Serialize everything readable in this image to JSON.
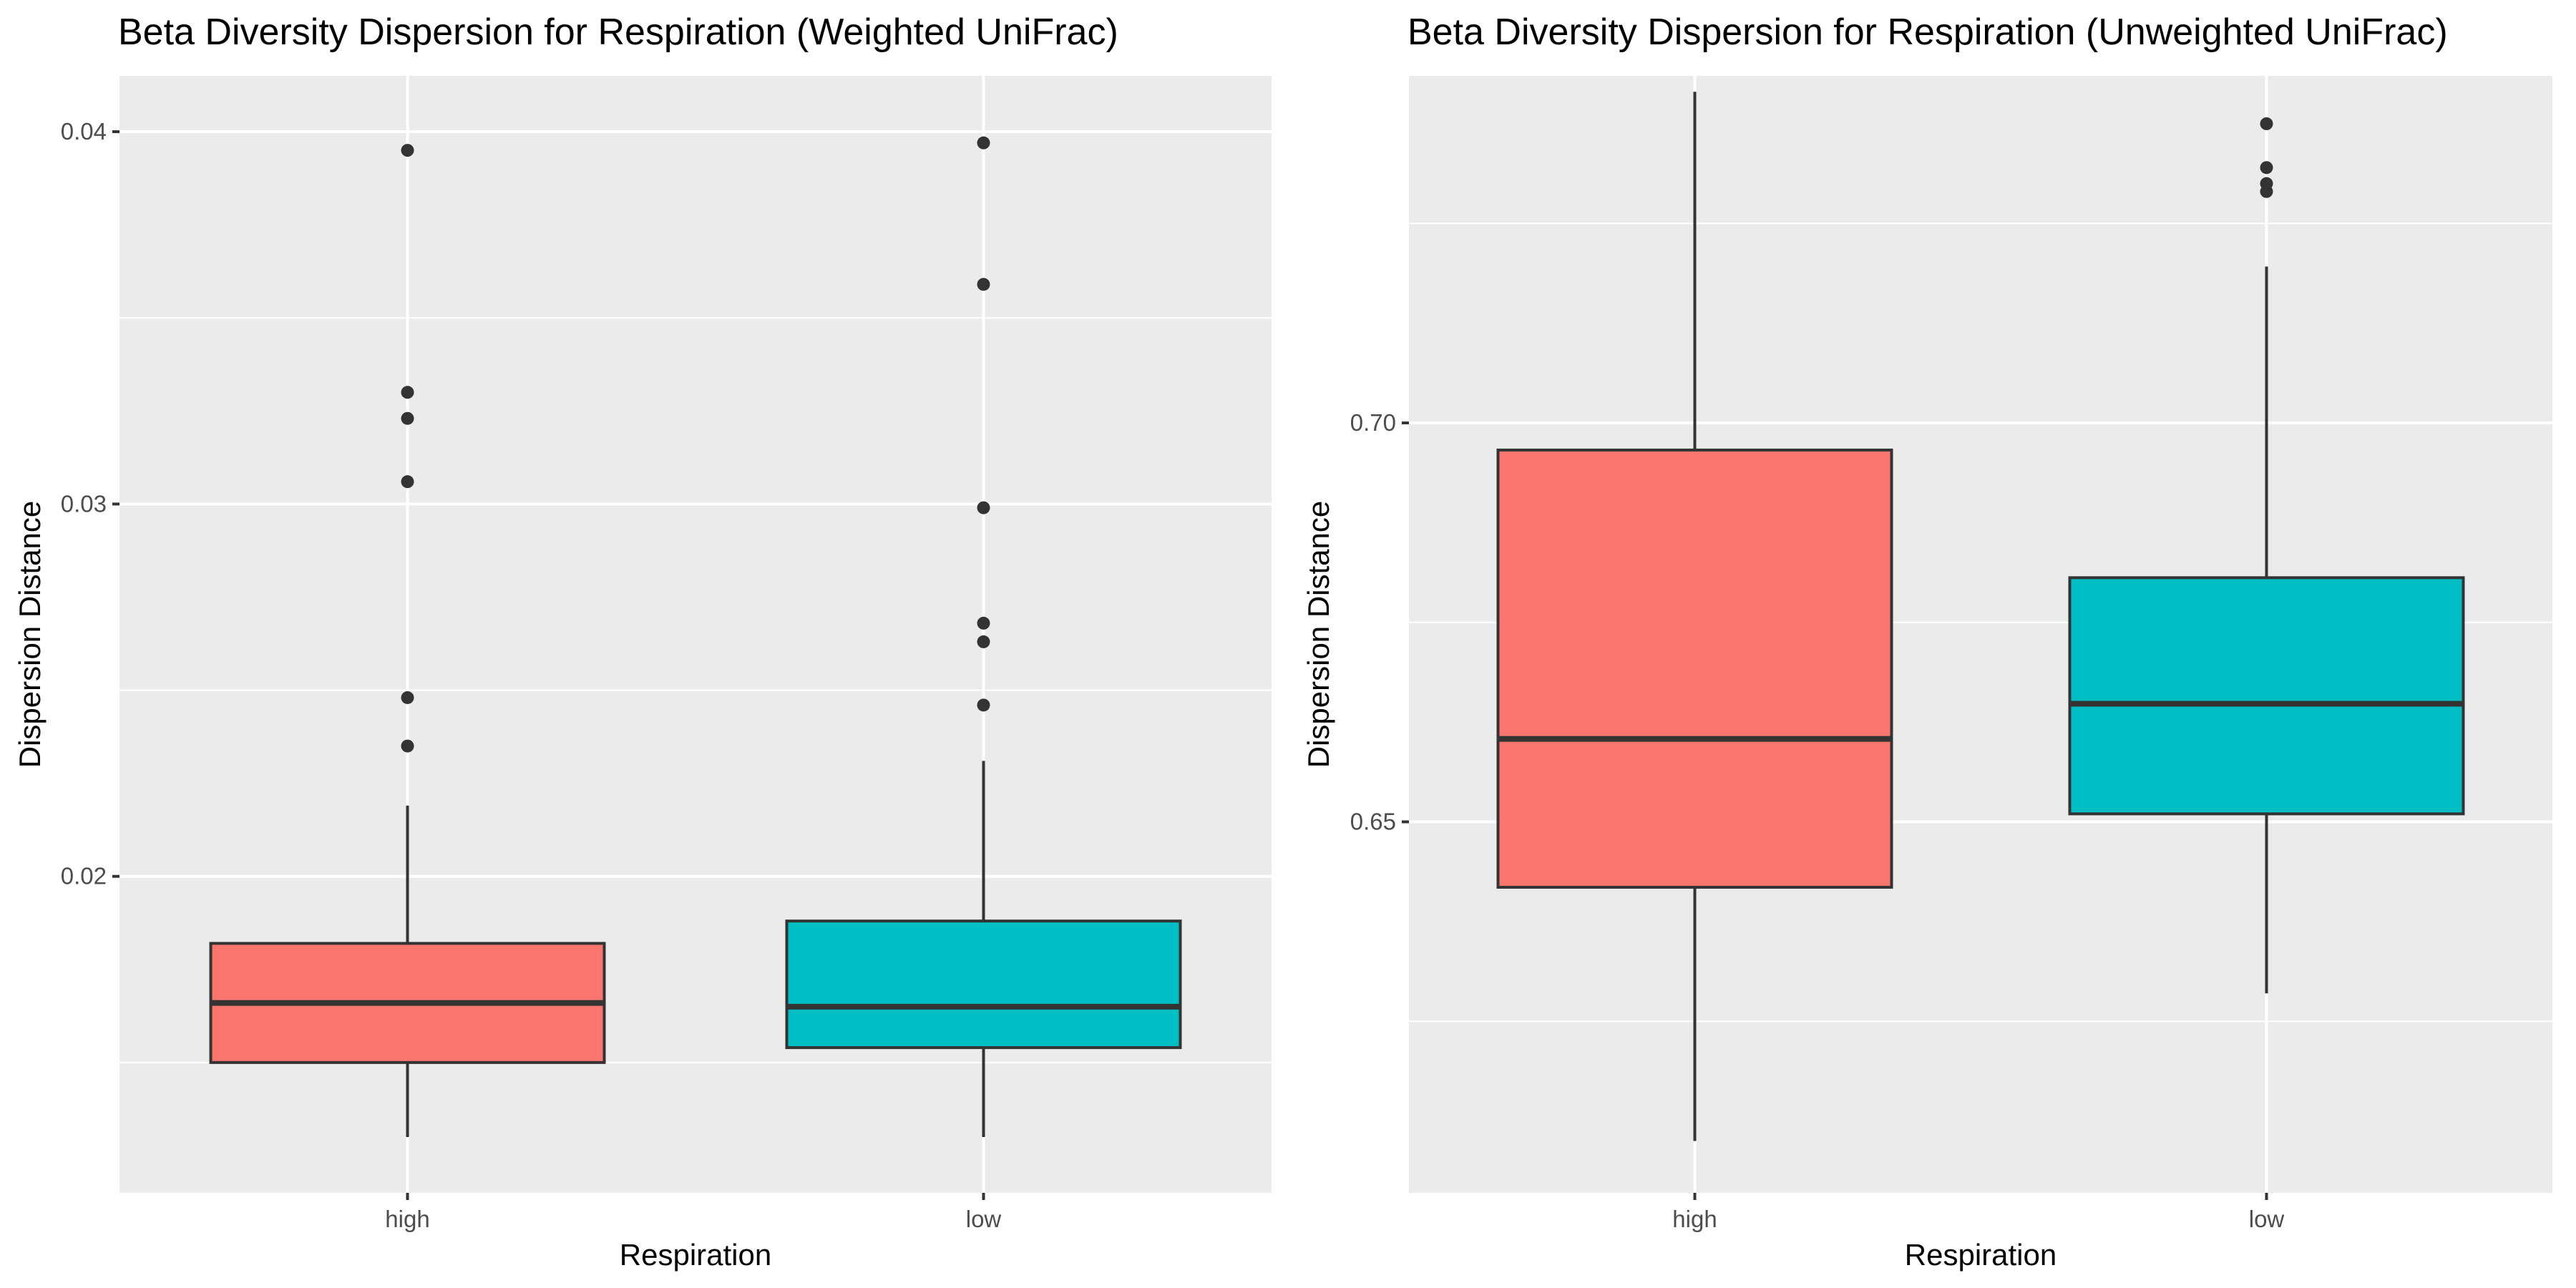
{
  "chart_data": [
    {
      "type": "box",
      "title": "Beta Diversity Dispersion for Respiration (Weighted UniFrac)",
      "xlabel": "Respiration",
      "ylabel": "Dispersion Distance",
      "ylim": [
        0.0115,
        0.0415
      ],
      "yticks": [
        0.02,
        0.03,
        0.04
      ],
      "ytick_labels": [
        "0.02",
        "0.03",
        "0.04"
      ],
      "ygrid_minor": [
        0.015,
        0.025,
        0.035
      ],
      "grid": true,
      "legend": "none",
      "categories": [
        "high",
        "low"
      ],
      "boxes": [
        {
          "name": "high",
          "color": "#F8766D",
          "whisker_low": 0.013,
          "q1": 0.015,
          "median": 0.0166,
          "q3": 0.0182,
          "whisker_high": 0.0219,
          "outliers": [
            0.0235,
            0.0248,
            0.0306,
            0.0323,
            0.033,
            0.0395
          ]
        },
        {
          "name": "low",
          "color": "#00BFC4",
          "whisker_low": 0.013,
          "q1": 0.0154,
          "median": 0.0165,
          "q3": 0.0188,
          "whisker_high": 0.0231,
          "outliers": [
            0.0246,
            0.0263,
            0.0268,
            0.0299,
            0.0359,
            0.0397
          ]
        }
      ]
    },
    {
      "type": "box",
      "title": "Beta Diversity Dispersion for Respiration (Unweighted UniFrac)",
      "xlabel": "Respiration",
      "ylabel": "Dispersion Distance",
      "ylim": [
        0.6035,
        0.7435
      ],
      "yticks": [
        0.65,
        0.7
      ],
      "ytick_labels": [
        "0.65",
        "0.70"
      ],
      "ygrid_minor": [
        0.625,
        0.675,
        0.725
      ],
      "grid": true,
      "legend": "none",
      "categories": [
        "high",
        "low"
      ],
      "boxes": [
        {
          "name": "high",
          "color": "#F8766D",
          "whisker_low": 0.61,
          "q1": 0.6418,
          "median": 0.6604,
          "q3": 0.6966,
          "whisker_high": 0.7415,
          "outliers": []
        },
        {
          "name": "low",
          "color": "#00BFC4",
          "whisker_low": 0.6285,
          "q1": 0.651,
          "median": 0.6648,
          "q3": 0.6806,
          "whisker_high": 0.7196,
          "outliers": [
            0.729,
            0.73,
            0.732,
            0.7375
          ]
        }
      ]
    }
  ]
}
